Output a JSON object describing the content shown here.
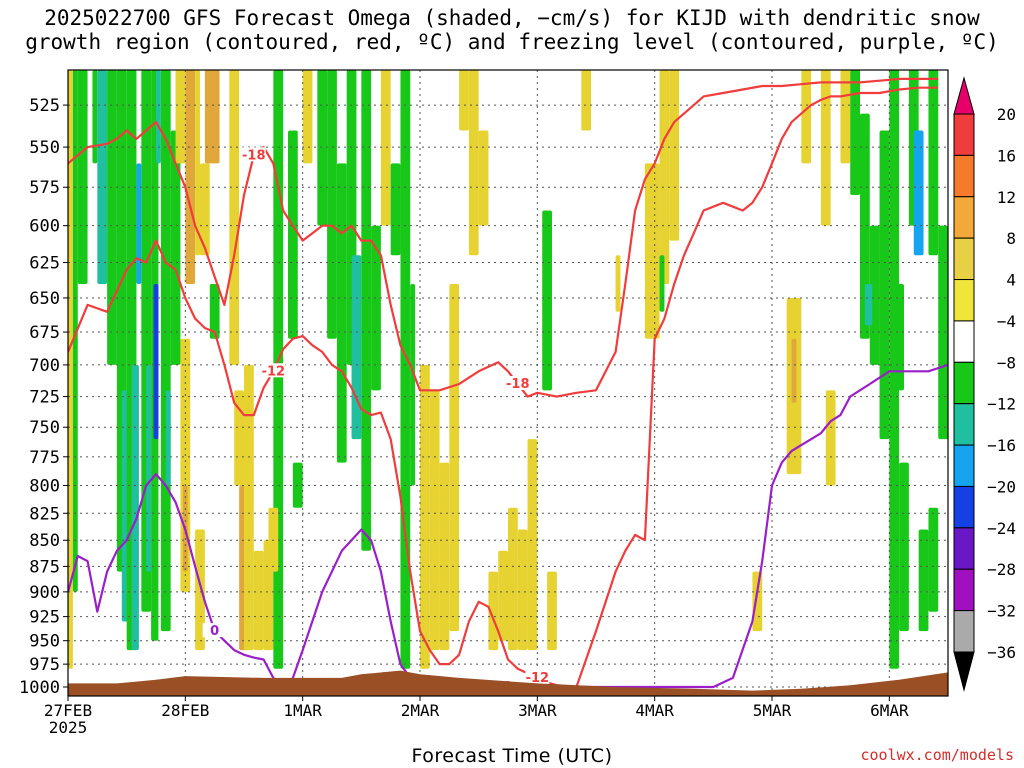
{
  "title": "2025022700 GFS Forecast Omega (shaded, −cm/s) for KIJD with dendritic snow\ngrowth region (contoured, red, ºC) and freezing level (contoured, purple, ºC)",
  "xaxis_title": "Forecast Time (UTC)",
  "credit": "coolwx.com/models",
  "chart_data": {
    "type": "heatmap",
    "title": "2025022700 GFS Forecast Omega (shaded, −cm/s) for KIJD with dendritic snow growth region (contoured, red, ºC) and freezing level (contoured, purple, ºC)",
    "xlabel": "Forecast Time (UTC)",
    "ylabel": "",
    "x_ticks": [
      "27FEB\n2025",
      "28FEB",
      "1MAR",
      "2MAR",
      "3MAR",
      "4MAR",
      "5MAR",
      "6MAR"
    ],
    "x_tick_hours": [
      0,
      24,
      48,
      72,
      96,
      120,
      144,
      168
    ],
    "xlim": [
      0,
      180
    ],
    "y_ticks": [
      525,
      550,
      575,
      600,
      625,
      650,
      675,
      700,
      725,
      750,
      775,
      800,
      825,
      850,
      875,
      900,
      925,
      950,
      975,
      1000
    ],
    "ylim": [
      1010,
      505
    ],
    "y_scale": "log-pressure",
    "colorbar": {
      "labels": [
        "20",
        "16",
        "12",
        "8",
        "4",
        "−4",
        "−8",
        "−12",
        "−16",
        "−20",
        "−24",
        "−28",
        "−32",
        "−36"
      ],
      "colors": [
        "#e8006a",
        "#f03c3c",
        "#f57a2b",
        "#f2a93a",
        "#e8d044",
        "#f0e53a",
        "#ffffff",
        "#18c818",
        "#1fc0a0",
        "#15a5f0",
        "#1540e6",
        "#6a17c8",
        "#a010c0",
        "#aaaaaa",
        "#000000"
      ]
    },
    "series": [
      {
        "name": "-12",
        "color": "#f03c3c",
        "x": [
          0,
          4,
          8,
          10,
          12,
          14,
          16,
          18,
          20,
          22,
          24,
          26,
          28,
          30,
          32,
          34,
          36,
          38,
          40,
          42,
          44,
          46,
          48,
          50,
          52,
          54,
          56,
          58,
          60,
          62,
          64,
          66,
          68,
          70,
          72,
          74,
          76,
          78,
          80,
          82,
          84,
          86,
          88,
          90,
          92,
          94,
          96,
          98,
          100,
          104,
          108,
          112,
          114,
          116,
          118,
          120,
          122,
          124,
          126,
          128,
          130,
          134,
          138,
          140,
          142,
          144,
          146,
          148,
          150,
          152,
          154,
          156,
          158,
          162,
          166,
          170,
          174,
          178
        ],
        "y": [
          690,
          655,
          660,
          645,
          630,
          622,
          625,
          610,
          625,
          630,
          650,
          665,
          672,
          675,
          700,
          730,
          740,
          740,
          718,
          705,
          688,
          680,
          678,
          685,
          690,
          700,
          705,
          718,
          735,
          740,
          738,
          760,
          810,
          880,
          940,
          960,
          975,
          975,
          965,
          930,
          910,
          915,
          940,
          970,
          980,
          985,
          990,
          995,
          998,
          1000,
          940,
          880,
          860,
          845,
          850,
          680,
          665,
          640,
          620,
          605,
          590,
          585,
          590,
          585,
          575,
          560,
          545,
          535,
          530,
          525,
          522,
          520,
          520,
          518,
          518,
          516,
          515,
          515
        ]
      },
      {
        "name": "-18",
        "color": "#f03c3c",
        "x": [
          0,
          4,
          8,
          10,
          12,
          14,
          16,
          18,
          20,
          22,
          24,
          26,
          28,
          30,
          32,
          34,
          36,
          38,
          40,
          42,
          44,
          46,
          48,
          50,
          52,
          54,
          56,
          58,
          60,
          62,
          64,
          66,
          68,
          70,
          72,
          76,
          80,
          84,
          88,
          90,
          92,
          94,
          96,
          100,
          104,
          108,
          112,
          114,
          116,
          118,
          120,
          122,
          124,
          126,
          128,
          130,
          134,
          138,
          142,
          146,
          150,
          154,
          158,
          162,
          166,
          170,
          174,
          178
        ],
        "y": [
          560,
          550,
          548,
          545,
          540,
          545,
          540,
          535,
          545,
          560,
          575,
          600,
          615,
          635,
          655,
          620,
          580,
          555,
          550,
          560,
          590,
          600,
          610,
          605,
          600,
          600,
          605,
          600,
          610,
          610,
          620,
          655,
          685,
          700,
          720,
          720,
          715,
          705,
          698,
          705,
          715,
          725,
          722,
          725,
          722,
          720,
          690,
          640,
          590,
          570,
          560,
          545,
          535,
          530,
          525,
          520,
          518,
          516,
          514,
          514,
          513,
          512,
          512,
          512,
          511,
          510,
          510,
          510
        ]
      },
      {
        "name": "0",
        "color": "#9b1fc8",
        "x": [
          0,
          2,
          4,
          6,
          8,
          10,
          12,
          14,
          16,
          18,
          20,
          22,
          24,
          26,
          28,
          30,
          32,
          34,
          36,
          38,
          40,
          42,
          44,
          46,
          48,
          52,
          56,
          60,
          62,
          64,
          66,
          68,
          70,
          72,
          76,
          84,
          90,
          96,
          104,
          112,
          120,
          124,
          128,
          132,
          136,
          140,
          142,
          144,
          146,
          148,
          150,
          152,
          154,
          156,
          158,
          160,
          164,
          168,
          172,
          176,
          180
        ],
        "y": [
          900,
          865,
          870,
          920,
          880,
          860,
          850,
          830,
          800,
          790,
          800,
          815,
          840,
          875,
          910,
          940,
          950,
          960,
          965,
          968,
          970,
          990,
          1000,
          990,
          960,
          900,
          860,
          840,
          850,
          880,
          930,
          975,
          990,
          1000,
          1000,
          1000,
          1000,
          1000,
          1000,
          1000,
          1000,
          1000,
          1000,
          1000,
          990,
          930,
          870,
          800,
          780,
          770,
          765,
          760,
          755,
          745,
          740,
          725,
          715,
          705,
          705,
          705,
          700
        ]
      }
    ]
  }
}
